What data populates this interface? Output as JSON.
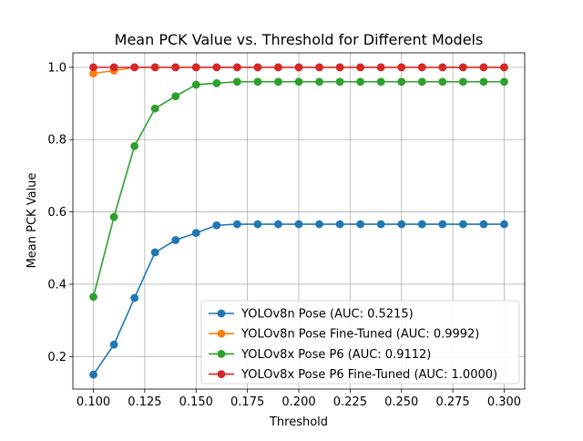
{
  "chart_data": {
    "type": "line",
    "title": "Mean PCK Value vs. Threshold for Different Models",
    "xlabel": "Threshold",
    "ylabel": "Mean PCK Value",
    "xlim": [
      0.09,
      0.31
    ],
    "ylim": [
      0.11,
      1.04
    ],
    "grid": true,
    "legend_position": "lower-right",
    "x": [
      0.1,
      0.11,
      0.12,
      0.13,
      0.14,
      0.15,
      0.16,
      0.17,
      0.18,
      0.19,
      0.2,
      0.21,
      0.22,
      0.23,
      0.24,
      0.25,
      0.26,
      0.27,
      0.28,
      0.29,
      0.3
    ],
    "xticks": [
      {
        "value": 0.1,
        "label": "0.100"
      },
      {
        "value": 0.125,
        "label": "0.125"
      },
      {
        "value": 0.15,
        "label": "0.150"
      },
      {
        "value": 0.175,
        "label": "0.175"
      },
      {
        "value": 0.2,
        "label": "0.200"
      },
      {
        "value": 0.225,
        "label": "0.225"
      },
      {
        "value": 0.25,
        "label": "0.250"
      },
      {
        "value": 0.275,
        "label": "0.275"
      },
      {
        "value": 0.3,
        "label": "0.300"
      }
    ],
    "yticks": [
      {
        "value": 0.2,
        "label": "0.2"
      },
      {
        "value": 0.4,
        "label": "0.4"
      },
      {
        "value": 0.6,
        "label": "0.6"
      },
      {
        "value": 0.8,
        "label": "0.8"
      },
      {
        "value": 1.0,
        "label": "1.0"
      }
    ],
    "series": [
      {
        "name": "YOLOv8n Pose (AUC: 0.5215)",
        "color": "#1f77b4",
        "values": [
          0.15,
          0.233,
          0.362,
          0.488,
          0.522,
          0.542,
          0.563,
          0.566,
          0.566,
          0.566,
          0.566,
          0.566,
          0.566,
          0.566,
          0.566,
          0.566,
          0.566,
          0.566,
          0.566,
          0.566,
          0.566
        ]
      },
      {
        "name": "YOLOv8n Pose Fine-Tuned (AUC: 0.9992)",
        "color": "#ff7f0e",
        "values": [
          0.983,
          0.991,
          1.0,
          1.0,
          1.0,
          1.0,
          1.0,
          1.0,
          1.0,
          1.0,
          1.0,
          1.0,
          1.0,
          1.0,
          1.0,
          1.0,
          1.0,
          1.0,
          1.0,
          1.0,
          1.0
        ]
      },
      {
        "name": "YOLOv8x Pose P6 (AUC: 0.9112)",
        "color": "#2ca02c",
        "values": [
          0.365,
          0.586,
          0.782,
          0.886,
          0.92,
          0.952,
          0.956,
          0.96,
          0.96,
          0.96,
          0.96,
          0.96,
          0.96,
          0.96,
          0.96,
          0.96,
          0.96,
          0.96,
          0.96,
          0.96,
          0.96
        ]
      },
      {
        "name": "YOLOv8x Pose P6 Fine-Tuned (AUC: 1.0000)",
        "color": "#d62728",
        "values": [
          1.0,
          1.0,
          1.0,
          1.0,
          1.0,
          1.0,
          1.0,
          1.0,
          1.0,
          1.0,
          1.0,
          1.0,
          1.0,
          1.0,
          1.0,
          1.0,
          1.0,
          1.0,
          1.0,
          1.0,
          1.0
        ]
      }
    ]
  }
}
